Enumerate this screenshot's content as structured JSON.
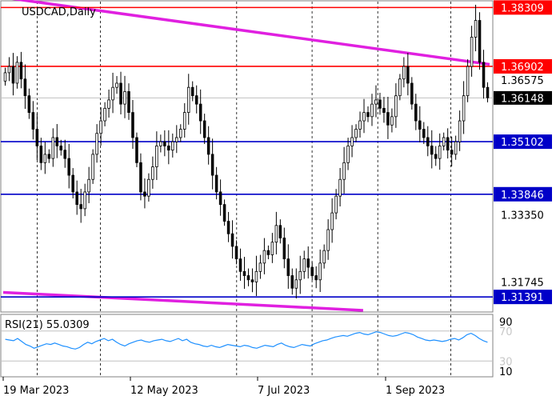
{
  "chart_data": [
    {
      "type": "candlestick",
      "title": "USDCAD,Daily",
      "x_labels": [
        "19 Mar 2023",
        "12 May 2023",
        "7 Jul 2023",
        "1 Sep 2023"
      ],
      "y_tick_labels": [
        "1.36575",
        "1.33350",
        "1.31745"
      ],
      "y_ticks": [
        1.36575,
        1.3335,
        1.31745
      ],
      "ylim": [
        1.3105,
        1.3845
      ],
      "levels": [
        {
          "label": "1.38309",
          "value": 1.38309,
          "color": "#ff0000",
          "kind": "resistance"
        },
        {
          "label": "1.36902",
          "value": 1.36902,
          "color": "#ff0000",
          "kind": "resistance"
        },
        {
          "label": "1.35102",
          "value": 1.35102,
          "color": "#0000c8",
          "kind": "support"
        },
        {
          "label": "1.33846",
          "value": 1.33846,
          "color": "#0000c8",
          "kind": "support"
        },
        {
          "label": "1.31391",
          "value": 1.31391,
          "color": "#0000c8",
          "kind": "support"
        }
      ],
      "current_price": {
        "label": "1.36148",
        "value": 1.36148
      },
      "trendlines": [
        {
          "name": "upper channel",
          "color": "#e020e0",
          "from": [
            0,
            1.3855
          ],
          "to": [
            1.0,
            1.3695
          ]
        },
        {
          "name": "lower channel",
          "color": "#e020e0",
          "from": [
            0,
            1.315
          ],
          "to": [
            0.74,
            1.3107
          ]
        }
      ],
      "closes": [
        1.3675,
        1.369,
        1.365,
        1.37,
        1.366,
        1.362,
        1.358,
        1.354,
        1.35,
        1.346,
        1.348,
        1.347,
        1.352,
        1.35,
        1.349,
        1.347,
        1.343,
        1.339,
        1.336,
        1.335,
        1.339,
        1.342,
        1.348,
        1.353,
        1.356,
        1.359,
        1.361,
        1.364,
        1.365,
        1.36,
        1.363,
        1.358,
        1.352,
        1.346,
        1.339,
        1.338,
        1.342,
        1.345,
        1.35,
        1.351,
        1.35,
        1.349,
        1.351,
        1.352,
        1.354,
        1.358,
        1.364,
        1.362,
        1.36,
        1.356,
        1.352,
        1.348,
        1.343,
        1.339,
        1.336,
        1.332,
        1.329,
        1.326,
        1.323,
        1.32,
        1.319,
        1.318,
        1.3175,
        1.32,
        1.322,
        1.325,
        1.324,
        1.327,
        1.331,
        1.328,
        1.323,
        1.319,
        1.316,
        1.318,
        1.32,
        1.323,
        1.321,
        1.319,
        1.318,
        1.322,
        1.325,
        1.33,
        1.334,
        1.338,
        1.342,
        1.346,
        1.35,
        1.352,
        1.354,
        1.356,
        1.358,
        1.357,
        1.36,
        1.361,
        1.359,
        1.358,
        1.355,
        1.357,
        1.362,
        1.366,
        1.369,
        1.365,
        1.36,
        1.356,
        1.354,
        1.352,
        1.35,
        1.348,
        1.347,
        1.35,
        1.352,
        1.349,
        1.348,
        1.351,
        1.356,
        1.362,
        1.369,
        1.376,
        1.38,
        1.37,
        1.364,
        1.3615
      ],
      "rsi": {
        "label": "RSI(21) 55.0309",
        "levels": [
          70,
          30
        ],
        "axis_labels": [
          "90",
          "70",
          "30",
          "10"
        ],
        "ylim": [
          10,
          90
        ],
        "values": [
          59,
          58,
          57,
          60,
          56,
          52,
          50,
          47,
          49,
          51,
          53,
          52,
          54,
          52,
          50,
          49,
          47,
          46,
          48,
          52,
          55,
          53,
          56,
          58,
          60,
          57,
          59,
          55,
          52,
          50,
          53,
          55,
          57,
          58,
          56,
          55,
          57,
          58,
          59,
          57,
          56,
          58,
          60,
          57,
          59,
          55,
          53,
          52,
          50,
          49,
          51,
          49,
          48,
          50,
          52,
          51,
          50,
          49,
          51,
          50,
          48,
          47,
          49,
          51,
          50,
          49,
          52,
          54,
          51,
          49,
          48,
          50,
          52,
          51,
          50,
          53,
          55,
          57,
          58,
          60,
          62,
          63,
          64,
          63,
          65,
          67,
          68,
          66,
          65,
          67,
          69,
          68,
          66,
          64,
          63,
          64,
          66,
          68,
          67,
          65,
          62,
          60,
          58,
          57,
          58,
          57,
          56,
          57,
          59,
          60,
          58,
          61,
          65,
          67,
          64,
          60,
          57,
          55
        ]
      }
    }
  ]
}
